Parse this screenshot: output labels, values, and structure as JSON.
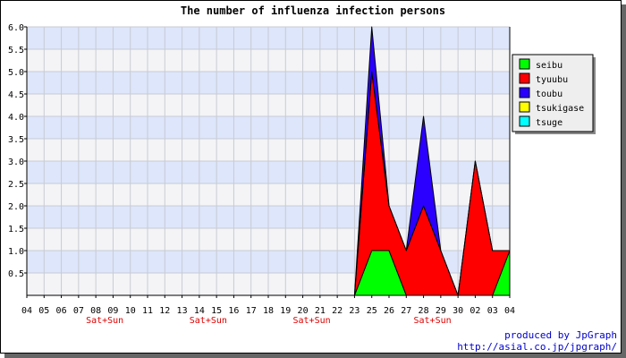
{
  "chart_data": {
    "type": "area",
    "stacked": true,
    "title": "The number of influenza infection persons",
    "xlabel": "",
    "ylabel": "",
    "ylim": [
      0,
      6
    ],
    "yticks": [
      "6.0",
      "5.5",
      "5.0",
      "4.5",
      "4.0",
      "3.5",
      "3.0",
      "2.5",
      "2.0",
      "1.5",
      "1.0",
      "0.5"
    ],
    "categories": [
      "04",
      "05",
      "06",
      "07",
      "08",
      "09",
      "10",
      "11",
      "12",
      "13",
      "14",
      "15",
      "16",
      "17",
      "18",
      "19",
      "20",
      "21",
      "22",
      "23",
      "25",
      "26",
      "27",
      "28",
      "29",
      "30",
      "02",
      "03",
      "04"
    ],
    "weekend_label": "Sat+Sun",
    "weekend_positions": [
      4,
      10,
      16,
      23
    ],
    "legend_position": "top-right",
    "grid": true,
    "series": [
      {
        "name": "seibu",
        "color": "#00ff00",
        "values": [
          0,
          0,
          0,
          0,
          0,
          0,
          0,
          0,
          0,
          0,
          0,
          0,
          0,
          0,
          0,
          0,
          0,
          0,
          0,
          0,
          1,
          1,
          0,
          0,
          0,
          0,
          0,
          0,
          1
        ]
      },
      {
        "name": "tyuubu",
        "color": "#ff0000",
        "values": [
          0,
          0,
          0,
          0,
          0,
          0,
          0,
          0,
          0,
          0,
          0,
          0,
          0,
          0,
          0,
          0,
          0,
          0,
          0,
          0,
          4,
          1,
          1,
          2,
          1,
          0,
          3,
          1,
          0
        ]
      },
      {
        "name": "toubu",
        "color": "#2b00ff",
        "values": [
          0,
          0,
          0,
          0,
          0,
          0,
          0,
          0,
          0,
          0,
          0,
          0,
          0,
          0,
          0,
          0,
          0,
          0,
          0,
          0,
          1,
          0,
          0,
          2,
          0,
          0,
          0,
          0,
          0
        ]
      },
      {
        "name": "tsukigase",
        "color": "#ffff00",
        "values": [
          0,
          0,
          0,
          0,
          0,
          0,
          0,
          0,
          0,
          0,
          0,
          0,
          0,
          0,
          0,
          0,
          0,
          0,
          0,
          0,
          0,
          0,
          0,
          0,
          0,
          0,
          0,
          0,
          0
        ]
      },
      {
        "name": "tsuge",
        "color": "#00ffff",
        "values": [
          0,
          0,
          0,
          0,
          0,
          0,
          0,
          0,
          0,
          0,
          0,
          0,
          0,
          0,
          0,
          0,
          0,
          0,
          0,
          0,
          0,
          0,
          0,
          0,
          0,
          0,
          0,
          0,
          0
        ]
      }
    ]
  },
  "footer": {
    "credit": "produced by JpGraph",
    "url": "http://asial.co.jp/jpgraph/"
  }
}
